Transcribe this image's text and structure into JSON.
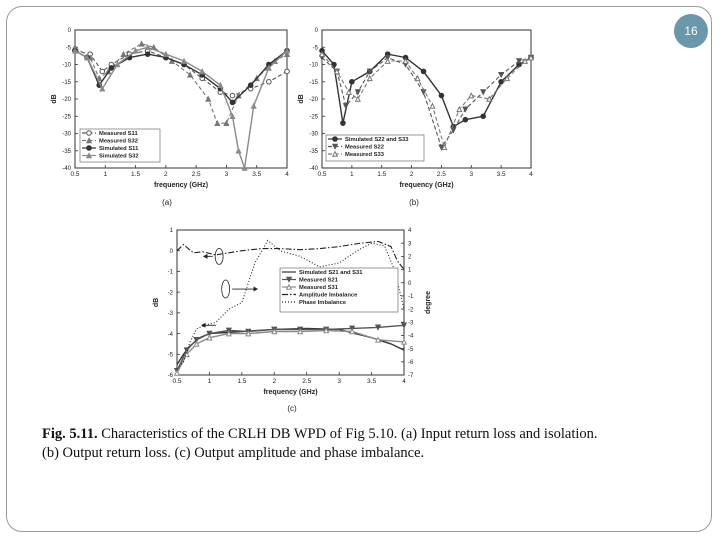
{
  "page_number": "16",
  "caption": {
    "label": "Fig. 5.11.",
    "text": "Characteristics of the CRLH DB WPD of Fig 5.10. (a) Input return loss and isolation. (b) Output return loss. (c) Output amplitude and phase imbalance."
  },
  "colors": {
    "frame": "#9a9a9a",
    "badge": "#6b97aa",
    "ink": "#222222"
  },
  "chart_data": [
    {
      "id": "a",
      "type": "line",
      "sublabel": "(a)",
      "xlabel": "frequency (GHz)",
      "ylabel": "dB",
      "xlim": [
        0.5,
        4
      ],
      "ylim": [
        -40,
        0
      ],
      "xticks": [
        "0.5",
        "1",
        "1.5",
        "2",
        "2.5",
        "3",
        "3.5",
        "4"
      ],
      "yticks": [
        "0",
        "-5",
        "-10",
        "-15",
        "-20",
        "-25",
        "-30",
        "-35",
        "-40"
      ],
      "series": [
        {
          "name": "Measured S11",
          "style": "dash",
          "marker": "circle-open",
          "color": "#555555",
          "x": [
            0.5,
            0.75,
            0.95,
            1.1,
            1.4,
            1.7,
            2.0,
            2.3,
            2.6,
            2.9,
            3.1,
            3.4,
            3.7,
            4.0
          ],
          "y": [
            -6,
            -7,
            -12,
            -10,
            -7,
            -6,
            -8,
            -10,
            -14,
            -18,
            -19,
            -17,
            -15,
            -12
          ]
        },
        {
          "name": "Measured S32",
          "style": "dash",
          "marker": "triangle",
          "color": "#777777",
          "x": [
            0.5,
            0.75,
            0.9,
            1.05,
            1.3,
            1.6,
            1.8,
            2.1,
            2.4,
            2.7,
            2.85,
            3.0,
            3.2,
            3.5,
            3.8,
            4.0
          ],
          "y": [
            -5,
            -8,
            -14,
            -12,
            -7,
            -4,
            -5,
            -9,
            -13,
            -20,
            -27,
            -27,
            -19,
            -14,
            -9,
            -7
          ]
        },
        {
          "name": "Simulated S11",
          "style": "solid",
          "marker": "circle",
          "color": "#333333",
          "x": [
            0.5,
            0.7,
            0.9,
            1.1,
            1.4,
            1.7,
            2.0,
            2.3,
            2.6,
            2.9,
            3.1,
            3.4,
            3.7,
            4.0
          ],
          "y": [
            -6,
            -8,
            -16,
            -11,
            -8,
            -7,
            -8,
            -10,
            -13,
            -17,
            -21,
            -16,
            -10,
            -6
          ]
        },
        {
          "name": "Simulated S32",
          "style": "solid",
          "marker": "triangle-filled",
          "color": "#8a8a8a",
          "x": [
            0.5,
            0.7,
            0.95,
            1.2,
            1.5,
            1.7,
            2.0,
            2.3,
            2.6,
            2.9,
            3.1,
            3.2,
            3.3,
            3.45,
            3.7,
            4.0
          ],
          "y": [
            -6,
            -8,
            -17,
            -10,
            -6,
            -5,
            -7,
            -9,
            -12,
            -16,
            -25,
            -35,
            -40,
            -22,
            -11,
            -6
          ]
        }
      ]
    },
    {
      "id": "b",
      "type": "line",
      "sublabel": "(b)",
      "xlabel": "frequency (GHz)",
      "ylabel": "dB",
      "xlim": [
        0.5,
        4
      ],
      "ylim": [
        -40,
        0
      ],
      "xticks": [
        "0.5",
        "1",
        "1.5",
        "2",
        "2.5",
        "3",
        "3.5",
        "4"
      ],
      "yticks": [
        "0",
        "-5",
        "-10",
        "-15",
        "-20",
        "-25",
        "-30",
        "-35",
        "-40"
      ],
      "series": [
        {
          "name": "Simulated S22 and S33",
          "style": "solid",
          "marker": "circle",
          "color": "#333333",
          "x": [
            0.5,
            0.7,
            0.85,
            1.0,
            1.3,
            1.6,
            1.9,
            2.2,
            2.5,
            2.7,
            2.9,
            3.2,
            3.5,
            3.8,
            4.0
          ],
          "y": [
            -6,
            -10,
            -27,
            -15,
            -12,
            -7,
            -8,
            -12,
            -19,
            -28,
            -26,
            -25,
            -15,
            -10,
            -8
          ]
        },
        {
          "name": "Measured S22",
          "style": "dash",
          "marker": "triangle-down",
          "color": "#555555",
          "x": [
            0.5,
            0.75,
            0.9,
            1.1,
            1.3,
            1.6,
            1.9,
            2.2,
            2.5,
            2.7,
            2.9,
            3.2,
            3.5,
            3.8,
            4.0
          ],
          "y": [
            -8,
            -12,
            -22,
            -18,
            -12,
            -8,
            -10,
            -18,
            -34,
            -29,
            -23,
            -18,
            -13,
            -9,
            -8
          ]
        },
        {
          "name": "Measured S33",
          "style": "dash",
          "marker": "triangle-open",
          "color": "#777777",
          "x": [
            0.5,
            0.75,
            0.95,
            1.1,
            1.3,
            1.6,
            1.9,
            2.1,
            2.35,
            2.55,
            2.8,
            3.0,
            3.3,
            3.6,
            3.9,
            4.0
          ],
          "y": [
            -7,
            -12,
            -18,
            -20,
            -14,
            -9,
            -9,
            -14,
            -22,
            -34,
            -23,
            -19,
            -20,
            -14,
            -9,
            -8
          ]
        }
      ]
    },
    {
      "id": "c",
      "type": "line",
      "sublabel": "(c)",
      "xlabel": "frequency (GHz)",
      "ylabel": "dB",
      "ylabel_right": "degree",
      "xlim": [
        0.5,
        4
      ],
      "ylim": [
        -6,
        1
      ],
      "ylim_right": [
        -7,
        4
      ],
      "xticks": [
        "0.5",
        "1",
        "1.5",
        "2",
        "2.5",
        "3",
        "3.5",
        "4"
      ],
      "yticks": [
        "1",
        "0",
        "-1",
        "-2",
        "-3",
        "-4",
        "-5",
        "-6"
      ],
      "yticks_right": [
        "4",
        "3",
        "2",
        "1",
        "0",
        "-1",
        "-2",
        "-3",
        "-4",
        "-5",
        "-6",
        "-7"
      ],
      "series": [
        {
          "name": "Simulated S21 and S31",
          "style": "solid",
          "marker": "",
          "color": "#333333",
          "axis": "left",
          "x": [
            0.5,
            0.6,
            0.7,
            0.85,
            1.0,
            1.5,
            2.0,
            2.5,
            3.0,
            3.5,
            3.8,
            4.0
          ],
          "y": [
            -5.5,
            -5.0,
            -4.6,
            -4.2,
            -4.0,
            -3.9,
            -3.8,
            -3.75,
            -3.8,
            -4.2,
            -4.5,
            -4.8
          ]
        },
        {
          "name": "Measured S21",
          "style": "solid",
          "marker": "triangle-down",
          "color": "#555555",
          "axis": "left",
          "x": [
            0.5,
            0.65,
            0.8,
            1.0,
            1.3,
            1.6,
            2.0,
            2.4,
            2.8,
            3.2,
            3.6,
            4.0
          ],
          "y": [
            -5.8,
            -4.8,
            -4.3,
            -4.0,
            -3.85,
            -3.9,
            -3.8,
            -3.8,
            -3.8,
            -3.75,
            -3.7,
            -3.6
          ]
        },
        {
          "name": "Measured S31",
          "style": "solid",
          "marker": "triangle-open",
          "color": "#8a8a8a",
          "axis": "left",
          "x": [
            0.5,
            0.65,
            0.8,
            1.0,
            1.3,
            1.6,
            2.0,
            2.4,
            2.8,
            3.2,
            3.6,
            4.0
          ],
          "y": [
            -5.9,
            -5.0,
            -4.5,
            -4.2,
            -4.0,
            -4.0,
            -3.9,
            -3.9,
            -3.85,
            -3.9,
            -4.3,
            -4.4
          ]
        },
        {
          "name": "Amplitude Imbalance",
          "style": "dashdot",
          "marker": "",
          "color": "#222222",
          "axis": "left",
          "x": [
            0.5,
            0.6,
            0.75,
            0.9,
            1.1,
            1.3,
            1.5,
            1.8,
            2.1,
            2.4,
            2.7,
            3.0,
            3.3,
            3.6,
            3.8,
            3.9,
            4.0
          ],
          "y": [
            0.0,
            0.3,
            -0.1,
            -0.05,
            -0.2,
            -0.1,
            0.0,
            0.1,
            0.1,
            0.05,
            0.1,
            0.2,
            0.35,
            0.45,
            0.2,
            -0.5,
            -0.9
          ]
        },
        {
          "name": "Phase Imbalance",
          "style": "dot",
          "marker": "",
          "color": "#222222",
          "axis": "right",
          "x": [
            0.5,
            0.6,
            0.7,
            0.8,
            0.95,
            1.1,
            1.3,
            1.5,
            1.7,
            1.9,
            2.1,
            2.4,
            2.7,
            3.0,
            3.3,
            3.5,
            3.7,
            3.85,
            4.0
          ],
          "y": [
            -6.5,
            -6.0,
            -4.5,
            -3.5,
            -3.2,
            -3.0,
            -2.0,
            -1.5,
            1.5,
            3.2,
            2.4,
            2.0,
            1.2,
            1.5,
            2.5,
            3.0,
            2.8,
            1.0,
            -2.0
          ]
        }
      ]
    }
  ]
}
